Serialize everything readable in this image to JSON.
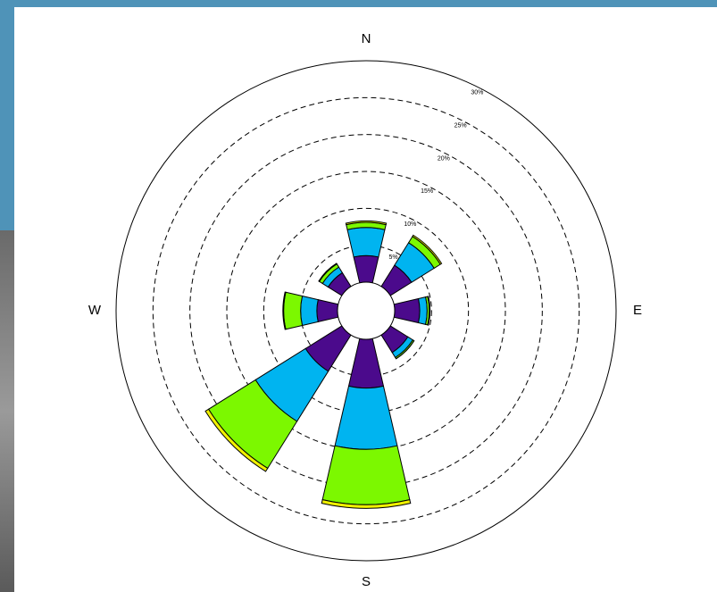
{
  "chart_data": {
    "type": "windrose",
    "categories": [
      "N",
      null,
      "E",
      null,
      "S",
      null,
      "W",
      null
    ],
    "series": [
      {
        "color": "#4b0a8c",
        "values": [
          3.6,
          3.4,
          3.4,
          2.8,
          6.6,
          5.8,
          2.8,
          2.2
        ]
      },
      {
        "color": "#00b4f0",
        "values": [
          3.8,
          3.6,
          1.0,
          0.8,
          8.3,
          8.0,
          2.2,
          0.9
        ]
      },
      {
        "color": "#7cf800",
        "values": [
          0.7,
          1.0,
          0.3,
          0.2,
          7.5,
          7.5,
          2.3,
          0.5
        ]
      },
      {
        "color": "#f0f000",
        "values": [
          0.2,
          0.2,
          0.1,
          0.0,
          0.5,
          0.5,
          0.1,
          0.1
        ]
      }
    ],
    "rlim": [
      0,
      30
    ],
    "rticks": [
      {
        "value": 5,
        "label": "5%"
      },
      {
        "value": 10,
        "label": "10%"
      },
      {
        "value": 15,
        "label": "15%"
      },
      {
        "value": 20,
        "label": "20%"
      },
      {
        "value": 25,
        "label": "25%"
      },
      {
        "value": 30,
        "label": "30%"
      }
    ],
    "grid": true
  }
}
